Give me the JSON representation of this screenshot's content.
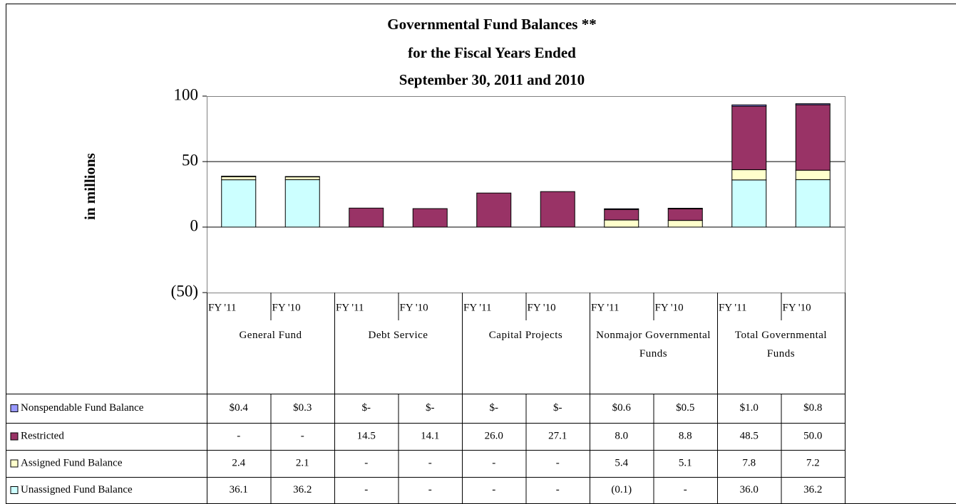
{
  "chart_data": {
    "type": "stacked_bar",
    "title": [
      "Governmental Fund Balances **",
      "for the Fiscal Years Ended",
      "September 30, 2011 and 2010"
    ],
    "y_label": "in millions",
    "categories": [
      "FY '11",
      "FY '10",
      "FY '11",
      "FY '10",
      "FY '11",
      "FY '10",
      "FY '11",
      "FY '10",
      "FY '11",
      "FY '10"
    ],
    "groups": [
      "General Fund",
      "Debt Service",
      "Capital Projects",
      "Nonmajor Governmental Funds",
      "Total Governmental Funds"
    ],
    "series": [
      {
        "name": "Nonspendable Fund Balance",
        "color": "#9999ff",
        "values": [
          0.4,
          0.3,
          0,
          0,
          0,
          0,
          0.6,
          0.5,
          1.0,
          0.8
        ],
        "value_labels": [
          "$0.4",
          "$0.3",
          "$-",
          "$-",
          "$-",
          "$-",
          "$0.6",
          "$0.5",
          "$1.0",
          "$0.8"
        ]
      },
      {
        "name": "Restricted",
        "color": "#993366",
        "values": [
          0,
          0,
          14.5,
          14.1,
          26.0,
          27.1,
          8.0,
          8.8,
          48.5,
          50.0
        ],
        "value_labels": [
          "-",
          "-",
          "14.5",
          "14.1",
          "26.0",
          "27.1",
          "8.0",
          "8.8",
          "48.5",
          "50.0"
        ]
      },
      {
        "name": "Assigned Fund Balance",
        "color": "#ffffcc",
        "values": [
          2.4,
          2.1,
          0,
          0,
          0,
          0,
          5.4,
          5.1,
          7.8,
          7.2
        ],
        "value_labels": [
          "2.4",
          "2.1",
          "-",
          "-",
          "-",
          "-",
          "5.4",
          "5.1",
          "7.8",
          "7.2"
        ]
      },
      {
        "name": "Unassigned Fund Balance",
        "color": "#ccffff",
        "values": [
          36.1,
          36.2,
          0,
          0,
          0,
          0,
          -0.1,
          0,
          36.0,
          36.2
        ],
        "value_labels": [
          "36.1",
          "36.2",
          "-",
          "-",
          "-",
          "-",
          "(0.1)",
          "-",
          "36.0",
          "36.2"
        ]
      }
    ],
    "ylim": [
      -50,
      100
    ],
    "yticks": [
      {
        "value": -50,
        "label": "(50)"
      },
      0,
      50,
      100
    ],
    "negative_tick_color": "#ff0000",
    "grid": true
  }
}
